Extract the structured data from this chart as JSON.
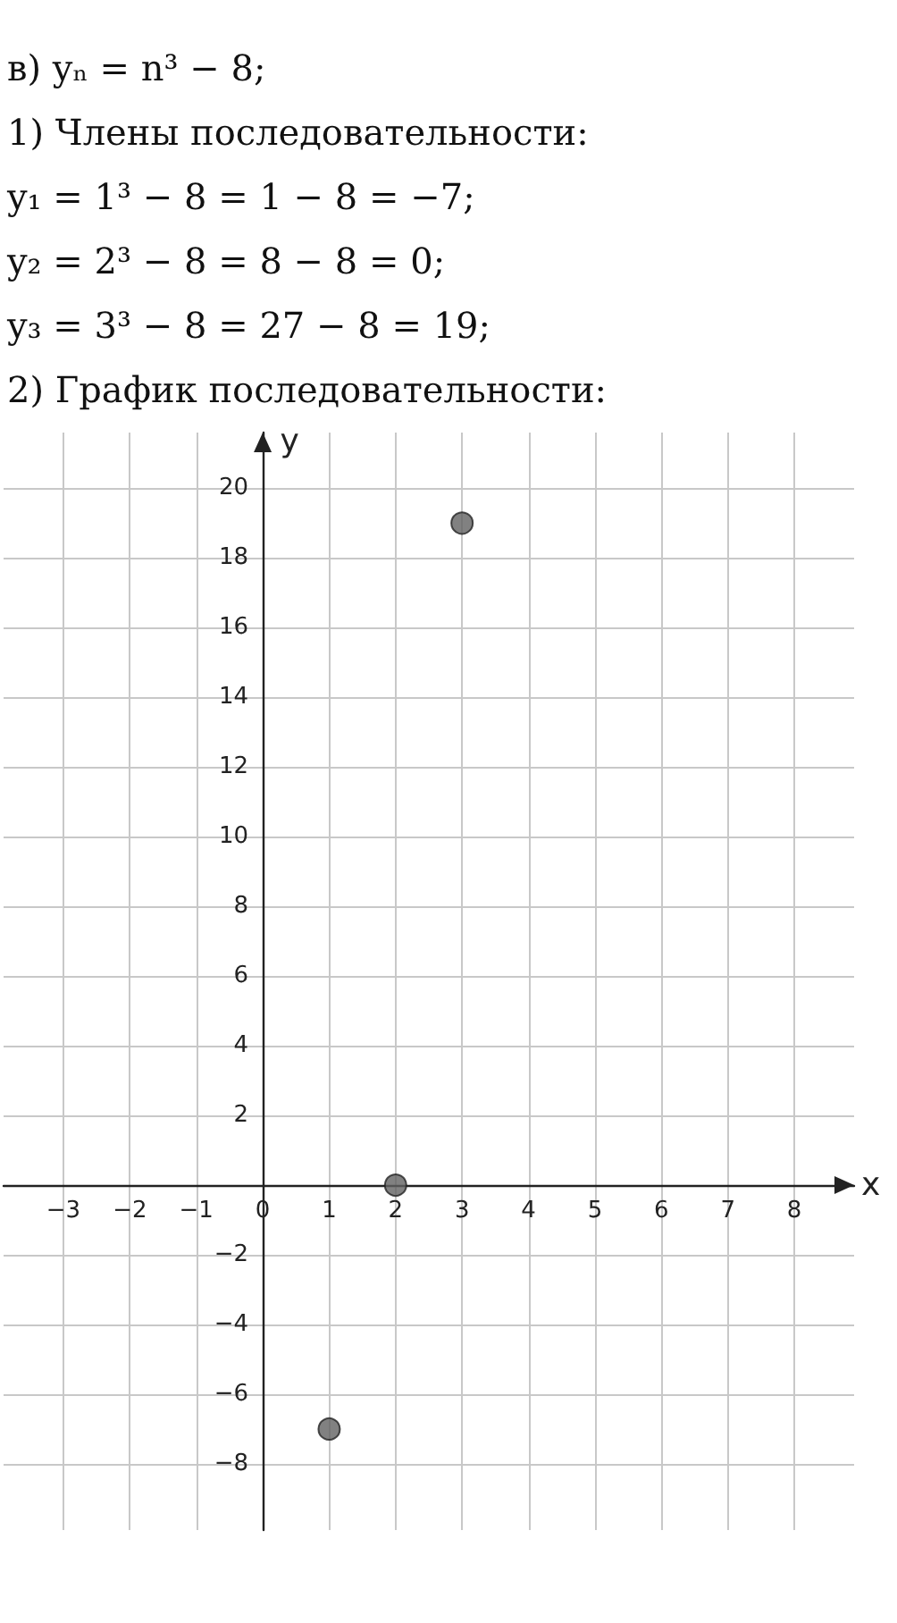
{
  "chart_data": {
    "type": "scatter",
    "title": "в) yₙ = n³ − 8;",
    "annotations": [
      "1) Члены последовательности:",
      "y₁ = 1³ − 8 = 1 − 8 = −7;",
      "y₂ = 2³ − 8 = 8 − 8 = 0;",
      "y₃ = 3³ − 8 = 27 − 8 = 19;",
      "2) График последовательности:"
    ],
    "xlabel": "x",
    "ylabel": "y",
    "x": [
      1,
      2,
      3
    ],
    "values": [
      -7,
      0,
      19
    ],
    "color": "#616161",
    "marker": "circle",
    "grid": true,
    "xlim": [
      -3.9,
      8.9
    ],
    "xticks": [
      -3,
      -2,
      -1,
      0,
      1,
      2,
      3,
      4,
      5,
      6,
      7,
      8
    ],
    "ylim": [
      -9.9,
      21.6
    ],
    "yticks": [
      -8,
      -6,
      -4,
      -2,
      {
        "value": 0,
        "label": null
      },
      2,
      4,
      6,
      8,
      10,
      12,
      14,
      16,
      18,
      20
    ]
  }
}
